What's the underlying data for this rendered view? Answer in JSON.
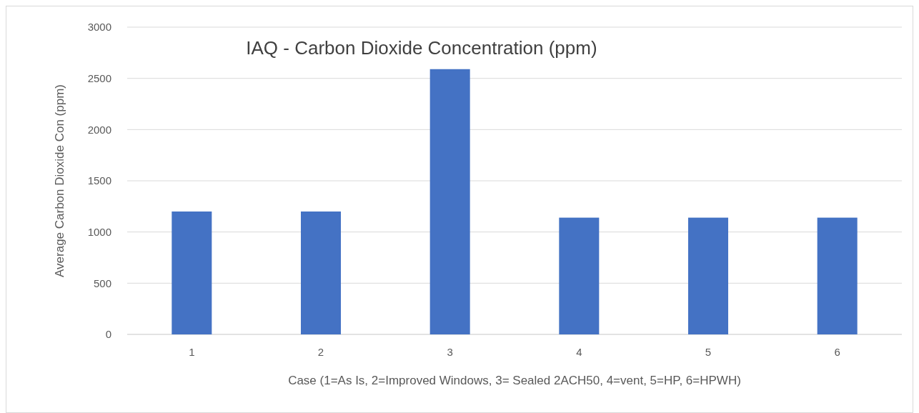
{
  "chart_data": {
    "type": "bar",
    "title": "IAQ - Carbon Dioxide Concentration (ppm)",
    "xlabel": "Case (1=As Is, 2=Improved Windows, 3= Sealed 2ACH50, 4=vent, 5=HP, 6=HPWH)",
    "ylabel": "Average Carbon Dioxide Con (ppm)",
    "categories": [
      "1",
      "2",
      "3",
      "4",
      "5",
      "6"
    ],
    "values": [
      1200,
      1200,
      2590,
      1140,
      1140,
      1140
    ],
    "color": "#4472c4",
    "ylim": [
      0,
      3000
    ],
    "yticks": [
      0,
      500,
      1000,
      1500,
      2000,
      2500,
      3000
    ],
    "grid": "y"
  }
}
